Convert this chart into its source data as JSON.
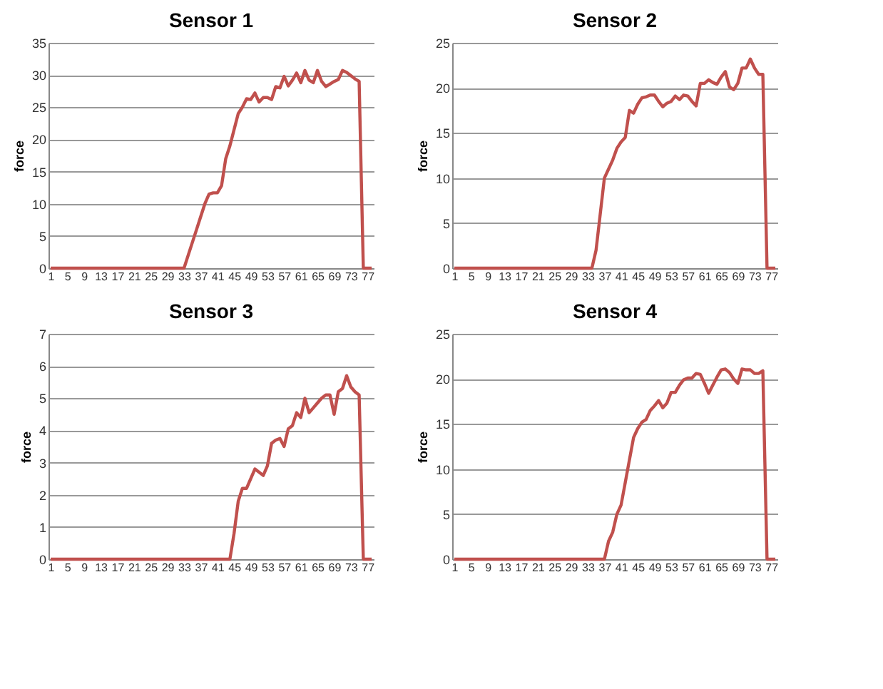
{
  "chart_data": [
    {
      "type": "line",
      "title": "Sensor 1",
      "ylabel": "force",
      "categories": [
        "1",
        null,
        null,
        null,
        "5",
        null,
        null,
        null,
        "9",
        null,
        null,
        null,
        "13",
        null,
        null,
        null,
        "17",
        null,
        null,
        null,
        "21",
        null,
        null,
        null,
        "25",
        null,
        null,
        null,
        "29",
        null,
        null,
        null,
        "33",
        null,
        null,
        null,
        "37",
        null,
        null,
        null,
        "41",
        null,
        null,
        null,
        "45",
        null,
        null,
        null,
        "49",
        null,
        null,
        null,
        "53",
        null,
        null,
        null,
        "57",
        null,
        null,
        null,
        "61",
        null,
        null,
        null,
        "65",
        null,
        null,
        null,
        "69",
        null,
        null,
        null,
        "73",
        null,
        null,
        null,
        "77",
        null
      ],
      "series": [
        {
          "color": "#c0504d",
          "values": [
            0,
            0,
            0,
            0,
            0,
            0,
            0,
            0,
            0,
            0,
            0,
            0,
            0,
            0,
            0,
            0,
            0,
            0,
            0,
            0,
            0,
            0,
            0,
            0,
            0,
            0,
            0,
            0,
            0,
            0,
            0,
            0,
            0,
            2,
            4,
            6,
            8,
            10,
            11.5,
            11.7,
            11.7,
            12.8,
            17,
            19,
            21.5,
            24,
            25,
            26.3,
            26.2,
            27.2,
            25.8,
            26.5,
            26.5,
            26.2,
            28.2,
            28,
            29.8,
            28.3,
            29.2,
            30.3,
            28.8,
            30.7,
            29.2,
            28.8,
            30.7,
            29,
            28.2,
            28.6,
            29,
            29.3,
            30.7,
            30.4,
            29.9,
            29.4,
            29,
            0,
            0,
            0
          ]
        }
      ],
      "ylim": [
        0,
        35
      ],
      "yticks": [
        0,
        5,
        10,
        15,
        20,
        25,
        30,
        35
      ],
      "grid": "y",
      "marker": "none",
      "line_style": "solid"
    },
    {
      "type": "line",
      "title": "Sensor 2",
      "ylabel": "force",
      "categories": [
        "1",
        null,
        null,
        null,
        "5",
        null,
        null,
        null,
        "9",
        null,
        null,
        null,
        "13",
        null,
        null,
        null,
        "17",
        null,
        null,
        null,
        "21",
        null,
        null,
        null,
        "25",
        null,
        null,
        null,
        "29",
        null,
        null,
        null,
        "33",
        null,
        null,
        null,
        "37",
        null,
        null,
        null,
        "41",
        null,
        null,
        null,
        "45",
        null,
        null,
        null,
        "49",
        null,
        null,
        null,
        "53",
        null,
        null,
        null,
        "57",
        null,
        null,
        null,
        "61",
        null,
        null,
        null,
        "65",
        null,
        null,
        null,
        "69",
        null,
        null,
        null,
        "73",
        null,
        null,
        null,
        "77",
        null
      ],
      "series": [
        {
          "color": "#c0504d",
          "values": [
            0,
            0,
            0,
            0,
            0,
            0,
            0,
            0,
            0,
            0,
            0,
            0,
            0,
            0,
            0,
            0,
            0,
            0,
            0,
            0,
            0,
            0,
            0,
            0,
            0,
            0,
            0,
            0,
            0,
            0,
            0,
            0,
            0,
            0,
            2,
            6,
            10,
            11,
            12,
            13.3,
            14,
            14.5,
            17.5,
            17.2,
            18.2,
            18.9,
            19,
            19.2,
            19.2,
            18.5,
            17.9,
            18.3,
            18.5,
            19.1,
            18.7,
            19.2,
            19.1,
            18.5,
            18,
            20.5,
            20.5,
            20.9,
            20.6,
            20.4,
            21.2,
            21.8,
            20.1,
            19.8,
            20.5,
            22.2,
            22.2,
            23.2,
            22.2,
            21.5,
            21.5,
            0,
            0,
            0
          ]
        }
      ],
      "ylim": [
        0,
        25
      ],
      "yticks": [
        0,
        5,
        10,
        15,
        20,
        25
      ],
      "grid": "y",
      "marker": "none",
      "line_style": "solid"
    },
    {
      "type": "line",
      "title": "Sensor 3",
      "ylabel": "force",
      "categories": [
        "1",
        null,
        null,
        null,
        "5",
        null,
        null,
        null,
        "9",
        null,
        null,
        null,
        "13",
        null,
        null,
        null,
        "17",
        null,
        null,
        null,
        "21",
        null,
        null,
        null,
        "25",
        null,
        null,
        null,
        "29",
        null,
        null,
        null,
        "33",
        null,
        null,
        null,
        "37",
        null,
        null,
        null,
        "41",
        null,
        null,
        null,
        "45",
        null,
        null,
        null,
        "49",
        null,
        null,
        null,
        "53",
        null,
        null,
        null,
        "57",
        null,
        null,
        null,
        "61",
        null,
        null,
        null,
        "65",
        null,
        null,
        null,
        "69",
        null,
        null,
        null,
        "73",
        null,
        null,
        null,
        "77",
        null
      ],
      "series": [
        {
          "color": "#c0504d",
          "values": [
            0,
            0,
            0,
            0,
            0,
            0,
            0,
            0,
            0,
            0,
            0,
            0,
            0,
            0,
            0,
            0,
            0,
            0,
            0,
            0,
            0,
            0,
            0,
            0,
            0,
            0,
            0,
            0,
            0,
            0,
            0,
            0,
            0,
            0,
            0,
            0,
            0,
            0,
            0,
            0,
            0,
            0,
            0,
            0,
            0.8,
            1.8,
            2.2,
            2.2,
            2.5,
            2.8,
            2.7,
            2.6,
            2.9,
            3.6,
            3.7,
            3.75,
            3.5,
            4.05,
            4.15,
            4.55,
            4.4,
            5.0,
            4.55,
            4.7,
            4.85,
            5.0,
            5.1,
            5.1,
            4.5,
            5.2,
            5.3,
            5.7,
            5.35,
            5.2,
            5.1,
            0,
            0,
            0
          ]
        }
      ],
      "ylim": [
        0,
        7
      ],
      "yticks": [
        0,
        1,
        2,
        3,
        4,
        5,
        6,
        7
      ],
      "grid": "y",
      "marker": "none",
      "line_style": "solid"
    },
    {
      "type": "line",
      "title": "Sensor 4",
      "ylabel": "force",
      "categories": [
        "1",
        null,
        null,
        null,
        "5",
        null,
        null,
        null,
        "9",
        null,
        null,
        null,
        "13",
        null,
        null,
        null,
        "17",
        null,
        null,
        null,
        "21",
        null,
        null,
        null,
        "25",
        null,
        null,
        null,
        "29",
        null,
        null,
        null,
        "33",
        null,
        null,
        null,
        "37",
        null,
        null,
        null,
        "41",
        null,
        null,
        null,
        "45",
        null,
        null,
        null,
        "49",
        null,
        null,
        null,
        "53",
        null,
        null,
        null,
        "57",
        null,
        null,
        null,
        "61",
        null,
        null,
        null,
        "65",
        null,
        null,
        null,
        "69",
        null,
        null,
        null,
        "73",
        null,
        null,
        null,
        "77",
        null
      ],
      "series": [
        {
          "color": "#c0504d",
          "values": [
            0,
            0,
            0,
            0,
            0,
            0,
            0,
            0,
            0,
            0,
            0,
            0,
            0,
            0,
            0,
            0,
            0,
            0,
            0,
            0,
            0,
            0,
            0,
            0,
            0,
            0,
            0,
            0,
            0,
            0,
            0,
            0,
            0,
            0,
            0,
            0,
            0,
            2,
            3,
            5,
            6,
            8.5,
            11,
            13.5,
            14.5,
            15.2,
            15.5,
            16.5,
            17,
            17.6,
            16.8,
            17.3,
            18.5,
            18.5,
            19.3,
            19.9,
            20.1,
            20.1,
            20.6,
            20.5,
            19.5,
            18.4,
            19.3,
            20.2,
            21,
            21.1,
            20.7,
            20,
            19.5,
            21.1,
            21,
            21,
            20.6,
            20.6,
            20.9,
            0,
            0,
            0
          ]
        }
      ],
      "ylim": [
        0,
        25
      ],
      "yticks": [
        0,
        5,
        10,
        15,
        20,
        25
      ],
      "grid": "y",
      "marker": "none",
      "line_style": "solid"
    }
  ]
}
